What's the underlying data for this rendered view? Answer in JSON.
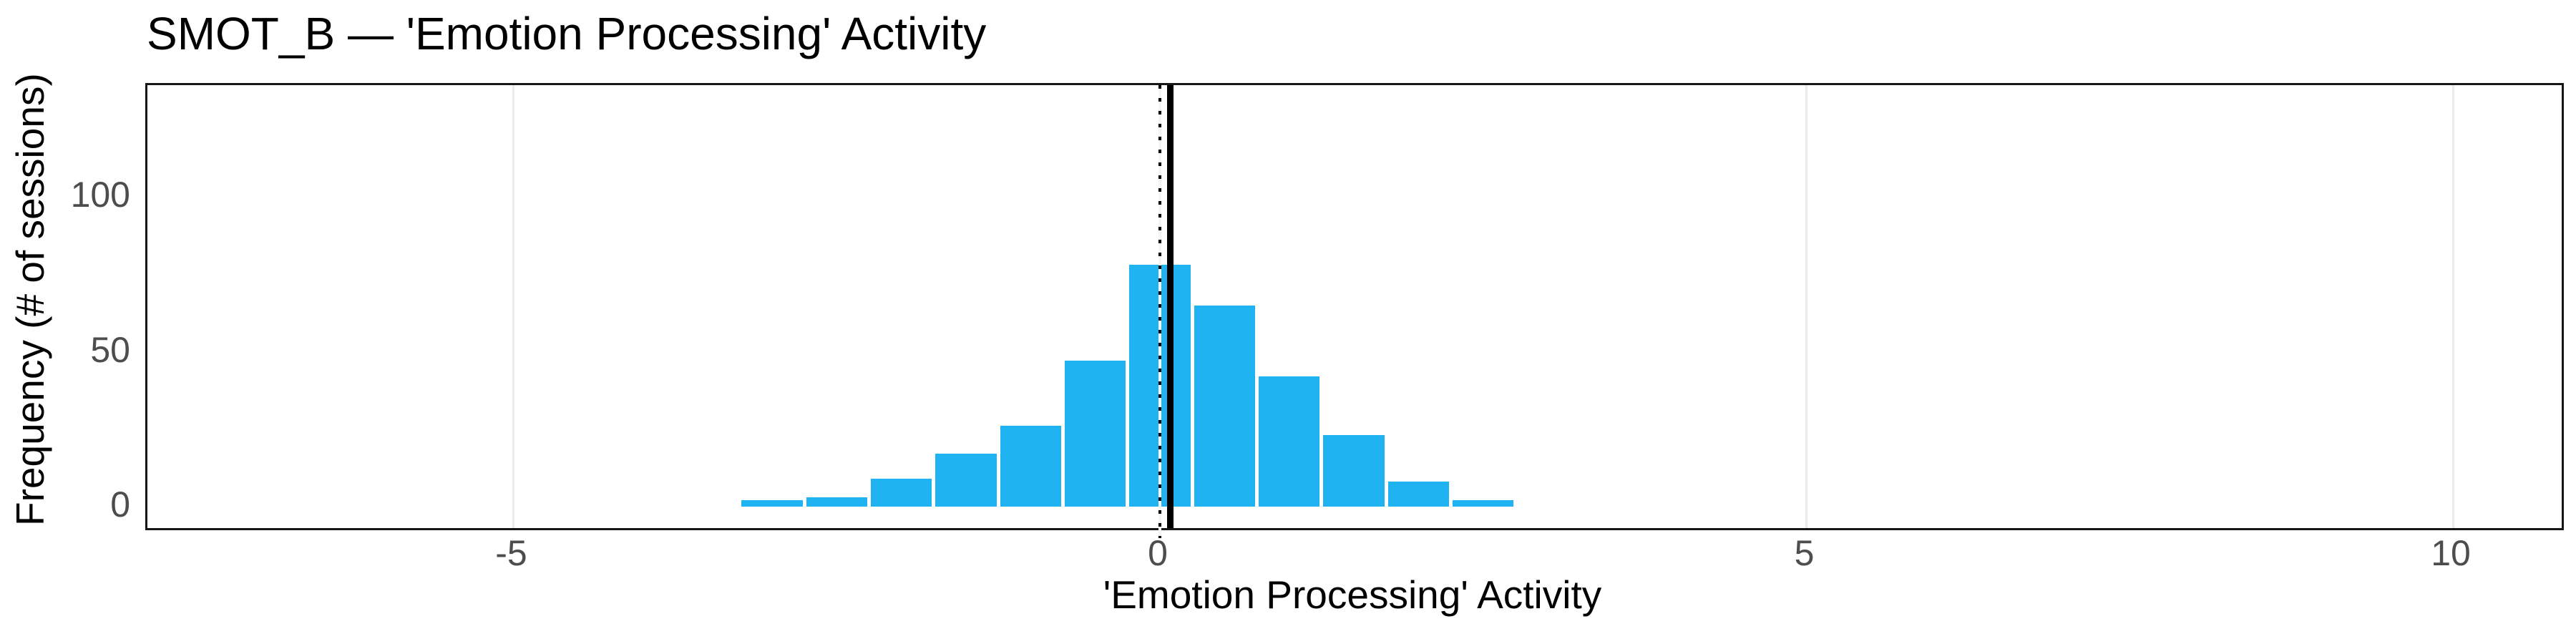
{
  "figure": {
    "title": "SMOT_B — 'Emotion Processing' Activity",
    "background": "#ffffff"
  },
  "colors": {
    "bar_fill": "#1FB3F1",
    "panel_border": "#161616",
    "gridline": "#EBEBEB",
    "tick_text": "#4D4D4D",
    "title_text": "#000000",
    "reference_lines": "#000000"
  },
  "chart_data": {
    "type": "bar",
    "subtype": "histogram",
    "title": "SMOT_B — 'Emotion Processing' Activity",
    "xlabel": "'Emotion Processing' Activity",
    "ylabel": "Frequency (# of sessions)",
    "bin_width": 0.5,
    "bin_centers": [
      -3.0,
      -2.5,
      -2.0,
      -1.5,
      -1.0,
      -0.5,
      0.0,
      0.5,
      1.0,
      1.5,
      2.0,
      2.5
    ],
    "counts": [
      2,
      3,
      9,
      17,
      26,
      47,
      78,
      65,
      42,
      23,
      8,
      2
    ],
    "x_ticks": {
      "values": [
        -5,
        0,
        5,
        10
      ],
      "labels": [
        "-5",
        "0",
        "5",
        "10"
      ]
    },
    "y_ticks": {
      "values": [
        0,
        50,
        100
      ],
      "labels": [
        "0",
        "50",
        "100"
      ]
    },
    "xlim": [
      -7.8,
      10.8
    ],
    "ylim": [
      0,
      136
    ],
    "grid": "vertical-major-only",
    "legend": "none",
    "reference_line_dotted": {
      "x": 0.0,
      "style": "dotted"
    },
    "reference_line_solid": {
      "x": 0.08,
      "style": "solid"
    }
  }
}
